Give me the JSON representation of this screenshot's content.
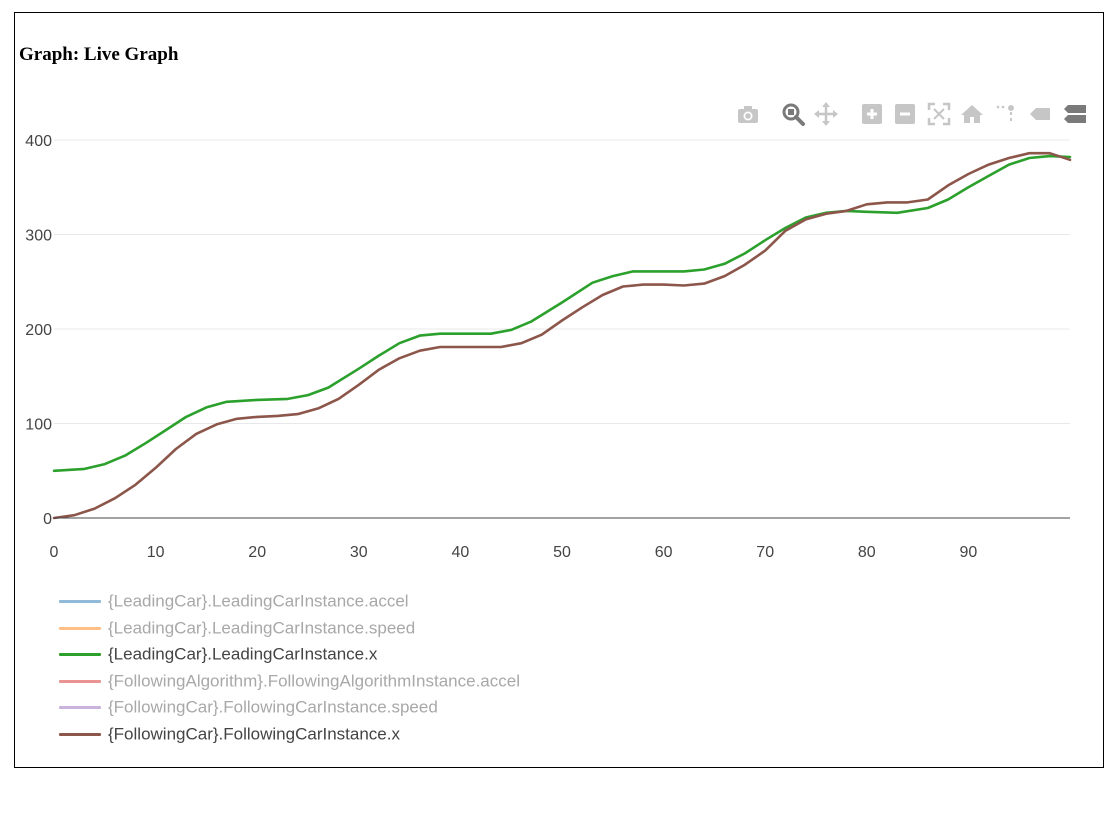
{
  "page": {
    "title": "Graph: Live Graph"
  },
  "modebar": [
    {
      "name": "camera-icon",
      "label": "Download plot as a png"
    },
    {
      "name": "zoom-icon",
      "label": "Zoom",
      "active": true
    },
    {
      "name": "pan-icon",
      "label": "Pan"
    },
    {
      "name": "zoom-in-icon",
      "label": "Zoom in"
    },
    {
      "name": "zoom-out-icon",
      "label": "Zoom out"
    },
    {
      "name": "autoscale-icon",
      "label": "Autoscale"
    },
    {
      "name": "home-icon",
      "label": "Reset axes"
    },
    {
      "name": "spike-lines-icon",
      "label": "Toggle Spike Lines"
    },
    {
      "name": "hover-closest-icon",
      "label": "Show closest data on hover"
    },
    {
      "name": "hover-compare-icon",
      "label": "Compare data on hover"
    }
  ],
  "chart_data": {
    "type": "line",
    "title": "",
    "xlabel": "",
    "ylabel": "",
    "xlim": [
      0,
      100
    ],
    "ylim": [
      0,
      400
    ],
    "xticks": [
      0,
      10,
      20,
      30,
      40,
      50,
      60,
      70,
      80,
      90
    ],
    "yticks": [
      0,
      100,
      200,
      300,
      400
    ],
    "grid": true,
    "legend": "bottom",
    "series": [
      {
        "name": "{LeadingCar}.LeadingCarInstance.accel",
        "color": "#1f77b4",
        "visible": false,
        "x": [],
        "y": []
      },
      {
        "name": "{LeadingCar}.LeadingCarInstance.speed",
        "color": "#ff7f0e",
        "visible": false,
        "x": [],
        "y": []
      },
      {
        "name": "{LeadingCar}.LeadingCarInstance.x",
        "color": "#2ca02c",
        "visible": true,
        "x": [
          0,
          3,
          5,
          7,
          9,
          11,
          13,
          15,
          17,
          20,
          23,
          25,
          27,
          30,
          32,
          34,
          36,
          38,
          40,
          43,
          45,
          47,
          50,
          53,
          55,
          57,
          60,
          62,
          64,
          66,
          68,
          70,
          72,
          74,
          76,
          78,
          80,
          83,
          86,
          88,
          90,
          92,
          94,
          96,
          98,
          100
        ],
        "y": [
          50,
          52,
          57,
          66,
          79,
          93,
          107,
          117,
          123,
          125,
          126,
          130,
          138,
          158,
          172,
          185,
          193,
          195,
          195,
          195,
          199,
          208,
          228,
          249,
          256,
          261,
          261,
          261,
          263,
          269,
          280,
          294,
          307,
          318,
          323,
          325,
          324,
          323,
          328,
          337,
          350,
          362,
          374,
          381,
          383,
          382
        ]
      },
      {
        "name": "{FollowingAlgorithm}.FollowingAlgorithmInstance.accel",
        "color": "#d62728",
        "visible": false,
        "x": [],
        "y": []
      },
      {
        "name": "{FollowingCar}.FollowingCarInstance.speed",
        "color": "#9467bd",
        "visible": false,
        "x": [],
        "y": []
      },
      {
        "name": "{FollowingCar}.FollowingCarInstance.x",
        "color": "#8c564b",
        "visible": true,
        "x": [
          0,
          2,
          4,
          6,
          8,
          10,
          12,
          14,
          16,
          18,
          20,
          22,
          24,
          26,
          28,
          30,
          32,
          34,
          36,
          38,
          40,
          42,
          44,
          46,
          48,
          50,
          52,
          54,
          56,
          58,
          60,
          62,
          64,
          66,
          68,
          70,
          72,
          74,
          76,
          78,
          80,
          82,
          84,
          86,
          88,
          90,
          92,
          94,
          96,
          98,
          100
        ],
        "y": [
          0,
          3,
          10,
          21,
          35,
          53,
          73,
          89,
          99,
          105,
          107,
          108,
          110,
          116,
          126,
          141,
          157,
          169,
          177,
          181,
          181,
          181,
          181,
          185,
          194,
          209,
          223,
          236,
          245,
          247,
          247,
          246,
          248,
          256,
          268,
          283,
          304,
          316,
          322,
          325,
          332,
          334,
          334,
          337,
          352,
          364,
          374,
          381,
          386,
          386,
          379
        ]
      }
    ]
  }
}
